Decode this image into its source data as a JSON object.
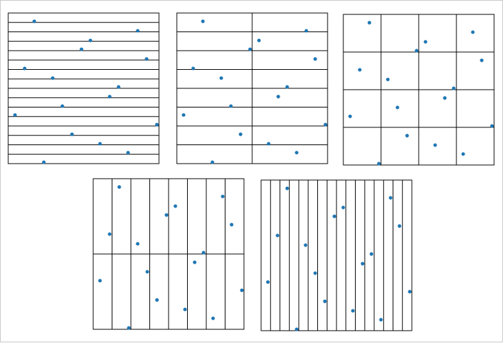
{
  "chart_data": [
    {
      "type": "scatter",
      "grid": {
        "rows": 16,
        "cols": 1
      },
      "xlim": [
        0,
        1
      ],
      "ylim": [
        0,
        1
      ],
      "marker_color": "#1f77b4",
      "points": [
        [
          0.173,
          0.945
        ],
        [
          0.859,
          0.882
        ],
        [
          0.545,
          0.818
        ],
        [
          0.486,
          0.759
        ],
        [
          0.918,
          0.695
        ],
        [
          0.109,
          0.632
        ],
        [
          0.295,
          0.568
        ],
        [
          0.732,
          0.509
        ],
        [
          0.673,
          0.445
        ],
        [
          0.359,
          0.382
        ],
        [
          0.045,
          0.323
        ],
        [
          0.986,
          0.259
        ],
        [
          0.423,
          0.195
        ],
        [
          0.609,
          0.132
        ],
        [
          0.795,
          0.073
        ],
        [
          0.236,
          0.009
        ]
      ]
    },
    {
      "type": "scatter",
      "grid": {
        "rows": 8,
        "cols": 2
      },
      "same_points_as": 0
    },
    {
      "type": "scatter",
      "grid": {
        "rows": 4,
        "cols": 4
      },
      "same_points_as": 0
    },
    {
      "type": "scatter",
      "grid": {
        "rows": 2,
        "cols": 8
      },
      "same_points_as": 0
    },
    {
      "type": "scatter",
      "grid": {
        "rows": 1,
        "cols": 16
      },
      "same_points_as": 0
    }
  ]
}
